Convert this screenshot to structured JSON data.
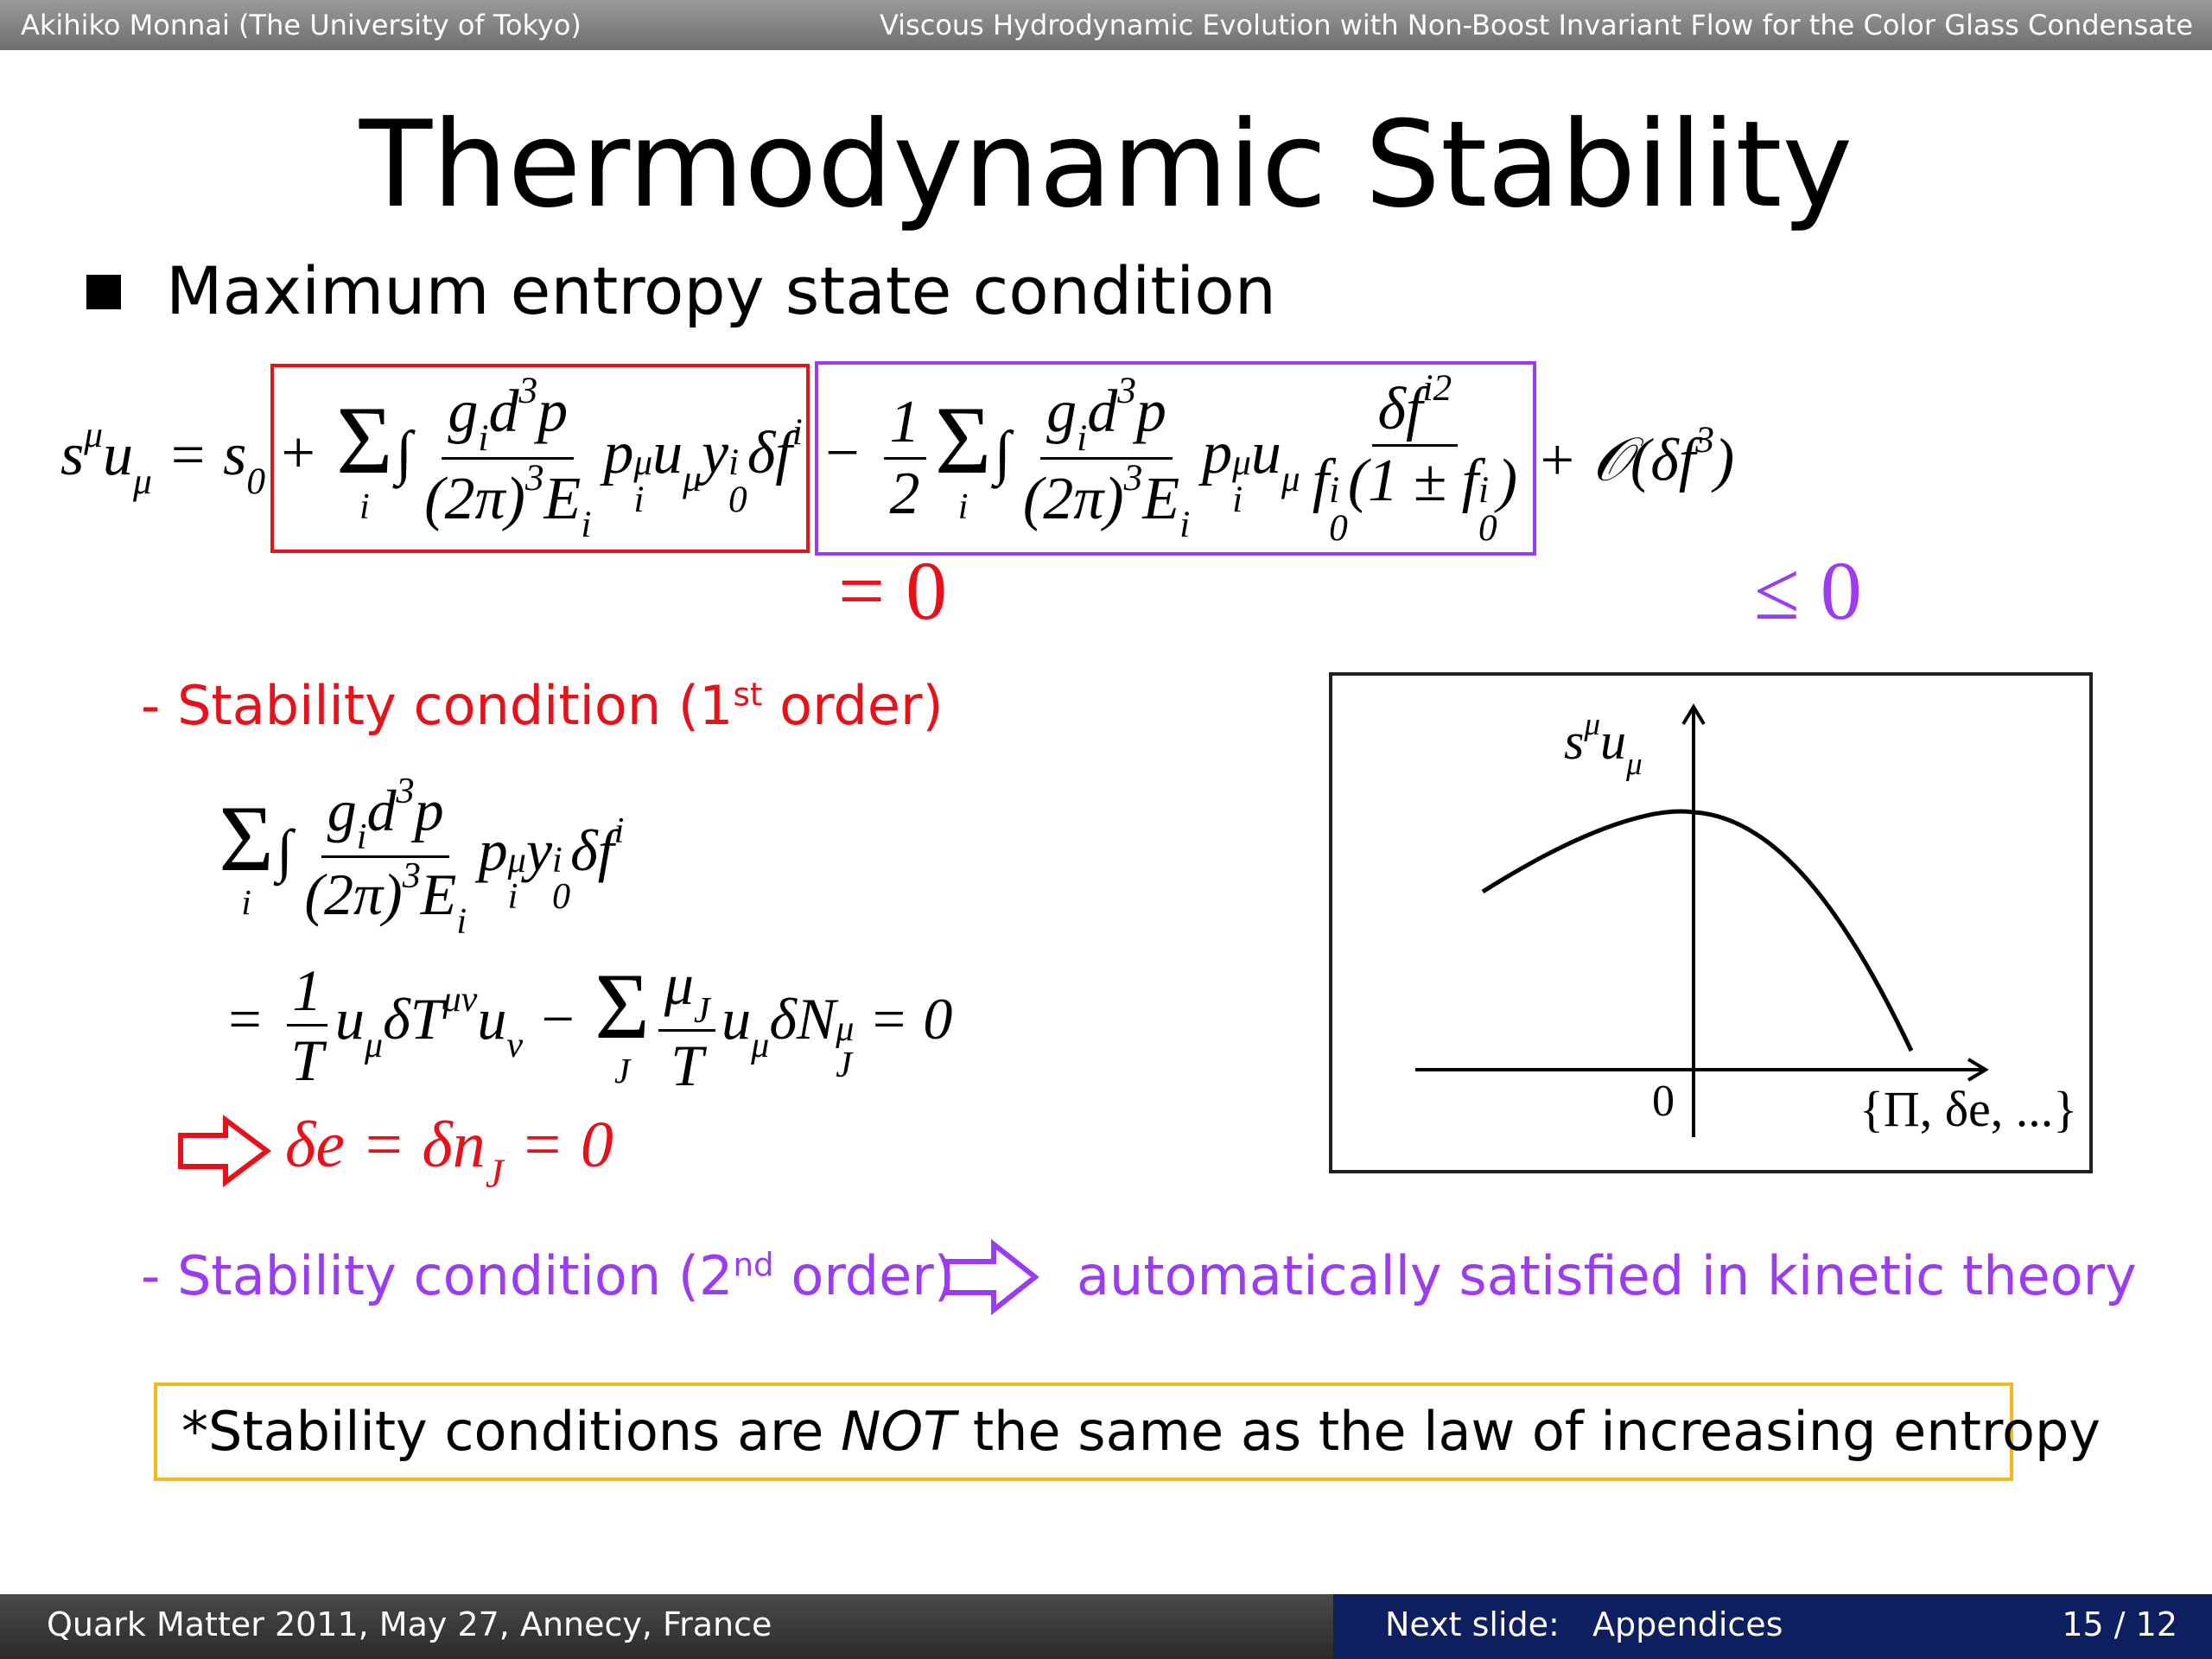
{
  "header": {
    "left": "Akihiko Monnai (The University of Tokyo)",
    "right": "Viscous Hydrodynamic Evolution with Non-Boost Invariant Flow for the Color Glass Condensate"
  },
  "title": "Thermodynamic Stability",
  "bullet": "Maximum entropy state condition",
  "main_equation": {
    "lhs": [
      {
        "b": "s",
        "sup": "μ"
      },
      {
        "b": "u",
        "sub": "μ"
      },
      " = ",
      {
        "b": "s",
        "sub": "0"
      }
    ],
    "first_term": [
      " + ",
      {
        "op": "Σ",
        "under": "i"
      },
      "∫",
      {
        "num": [
          {
            "b": "g",
            "sub": "i"
          },
          {
            "b": "d",
            "sup": "3"
          },
          "p"
        ],
        "den": [
          {
            "b": "(2π)",
            "sup": "3"
          },
          {
            "b": "E",
            "sub": "i"
          }
        ]
      },
      {
        "b": "p",
        "sup": "μ",
        "sub": "i"
      },
      {
        "b": "u",
        "sub": "μ"
      },
      {
        "b": "y",
        "sup": "i",
        "sub": "0"
      },
      {
        "b": "δf",
        "sup": "i"
      }
    ],
    "second_term": [
      " − ",
      {
        "num": [
          "1"
        ],
        "den": [
          "2"
        ]
      },
      {
        "op": "Σ",
        "under": "i"
      },
      "∫",
      {
        "num": [
          {
            "b": "g",
            "sub": "i"
          },
          {
            "b": "d",
            "sup": "3"
          },
          "p"
        ],
        "den": [
          {
            "b": "(2π)",
            "sup": "3"
          },
          {
            "b": "E",
            "sub": "i"
          }
        ]
      },
      {
        "b": "p",
        "sup": "μ",
        "sub": "i"
      },
      {
        "b": "u",
        "sub": "μ"
      },
      {
        "num": [
          {
            "b": "δf",
            "sup": "i2"
          }
        ],
        "den": [
          {
            "b": "f",
            "sup": "i",
            "sub": "0"
          },
          "(1 ± ",
          {
            "b": "f",
            "sup": "i",
            "sub": "0"
          },
          ")"
        ]
      }
    ],
    "remainder": [
      " + 𝒪(δ",
      {
        "b": "f",
        "sup": "3"
      },
      ")"
    ],
    "first_result": "= 0",
    "second_result": "≤ 0"
  },
  "first_order": {
    "label": {
      "before": "- Stability condition (1",
      "sup": "st",
      "after": " order)"
    },
    "line1": [
      {
        "op": "Σ",
        "under": "i"
      },
      "∫",
      {
        "num": [
          {
            "b": "g",
            "sub": "i"
          },
          {
            "b": "d",
            "sup": "3"
          },
          "p"
        ],
        "den": [
          {
            "b": "(2π)",
            "sup": "3"
          },
          {
            "b": "E",
            "sub": "i"
          }
        ]
      },
      {
        "b": "p",
        "sup": "μ",
        "sub": "i"
      },
      {
        "b": "y",
        "sup": "i",
        "sub": "0"
      },
      {
        "b": "δf",
        "sup": "i"
      }
    ],
    "line2": [
      "= ",
      {
        "num": [
          "1"
        ],
        "den": [
          "T"
        ]
      },
      {
        "b": "u",
        "sub": "μ"
      },
      {
        "b": "δT",
        "sup": "μν"
      },
      {
        "b": "u",
        "sub": "ν"
      },
      " − ",
      {
        "op": "Σ",
        "under": "J"
      },
      {
        "num": [
          {
            "b": "μ",
            "sub": "J"
          }
        ],
        "den": [
          "T"
        ]
      },
      {
        "b": "u",
        "sub": "μ"
      },
      {
        "b": "δN",
        "sup": "μ",
        "sub": "J"
      },
      " = 0"
    ],
    "result": [
      "δe = δ",
      {
        "b": "n",
        "sub": "J"
      },
      " = 0"
    ]
  },
  "graph": {
    "y_label": [
      {
        "b": "s",
        "sup": "μ"
      },
      {
        "b": "u",
        "sub": "μ"
      }
    ],
    "origin": "0",
    "x_label": "{Π, δe, ...}"
  },
  "second_order": {
    "label": {
      "before": "- Stability condition (2",
      "sup": "nd",
      "after": " order)"
    },
    "conclusion": "automatically satisfied in kinetic theory"
  },
  "note": {
    "before": "*Stability conditions are ",
    "emphasis": "NOT",
    "after": " the same as the law of increasing entropy"
  },
  "footer": {
    "event": "Quark Matter 2011, May 27, Annecy, France",
    "next_label": "Next slide:",
    "next_title": "Appendices",
    "page": "15 / 12"
  }
}
